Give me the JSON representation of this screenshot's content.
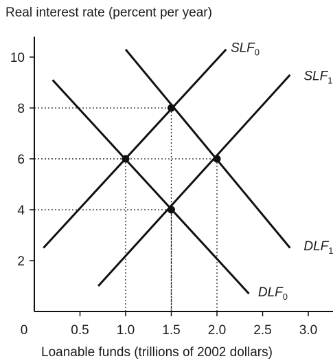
{
  "chart_data": {
    "type": "line",
    "title": "",
    "ylabel": "Real interest rate (percent per year)",
    "xlabel": "Loanable funds (trillions of 2002 dollars)",
    "origin_label": "0",
    "xlim": [
      0,
      3.3
    ],
    "ylim": [
      0,
      10.8
    ],
    "x_ticks": [
      {
        "value": 0.5,
        "label": "0.5"
      },
      {
        "value": 1.0,
        "label": "1.0"
      },
      {
        "value": 1.5,
        "label": "1.5"
      },
      {
        "value": 2.0,
        "label": "2.0"
      },
      {
        "value": 2.5,
        "label": "2.5"
      },
      {
        "value": 3.0,
        "label": "3.0"
      }
    ],
    "y_ticks": [
      {
        "value": 2,
        "label": "2"
      },
      {
        "value": 4,
        "label": "4"
      },
      {
        "value": 6,
        "label": "6"
      },
      {
        "value": 8,
        "label": "8"
      },
      {
        "value": 10,
        "label": "10"
      }
    ],
    "grid": false,
    "series": [
      {
        "name": "SLF",
        "subscript": "0",
        "label_at": [
          2.15,
          10.2
        ],
        "points": [
          [
            0.1,
            2.5
          ],
          [
            2.1,
            10.3
          ]
        ]
      },
      {
        "name": "SLF",
        "subscript": "1",
        "label_at": [
          2.95,
          9.1
        ],
        "points": [
          [
            0.7,
            1.0
          ],
          [
            2.8,
            9.3
          ]
        ]
      },
      {
        "name": "DLF",
        "subscript": "1",
        "label_at": [
          2.95,
          2.4
        ],
        "points": [
          [
            1.0,
            10.3
          ],
          [
            2.8,
            2.5
          ]
        ]
      },
      {
        "name": "DLF",
        "subscript": "0",
        "label_at": [
          2.45,
          0.6
        ],
        "points": [
          [
            0.2,
            9.1
          ],
          [
            2.35,
            0.7
          ]
        ]
      }
    ],
    "equilibria": [
      {
        "x": 1.0,
        "y": 6
      },
      {
        "x": 1.5,
        "y": 8
      },
      {
        "x": 1.5,
        "y": 4
      },
      {
        "x": 2.0,
        "y": 6
      }
    ],
    "colors": {
      "line": "#111111",
      "axis": "#111111",
      "guide": "#222222",
      "text": "#1a1a1a"
    }
  }
}
